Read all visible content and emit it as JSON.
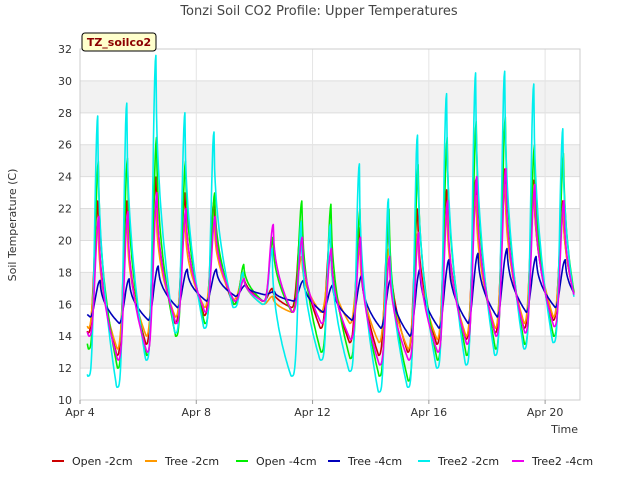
{
  "chart_data": {
    "type": "line",
    "title": "Tonzi Soil CO2 Profile: Upper Temperatures",
    "xlabel": "Time",
    "ylabel": "Soil Temperature (C)",
    "tag_label": "TZ_soilco2",
    "xlim": [
      0,
      17.2
    ],
    "ylim": [
      10,
      32
    ],
    "yticks": [
      10,
      12,
      14,
      16,
      18,
      20,
      22,
      24,
      26,
      28,
      30,
      32
    ],
    "xticks": [
      {
        "value": 0,
        "label": "Apr 4"
      },
      {
        "value": 4,
        "label": "Apr 8"
      },
      {
        "value": 8,
        "label": "Apr 12"
      },
      {
        "value": 12,
        "label": "Apr 16"
      },
      {
        "value": 16,
        "label": "Apr 20"
      }
    ],
    "grid": true,
    "legend_position": "bottom",
    "start_offset_days": 0.25,
    "end_offset_days": 17.0,
    "daily_min": [
      {
        "name": "Open -2cm",
        "values": [
          14.2,
          12.8,
          13.5,
          14.8,
          15.3,
          16.0,
          16.2,
          15.8,
          14.5,
          13.6,
          12.8,
          13.0,
          13.5,
          13.8,
          14.2,
          14.5,
          15.0
        ]
      },
      {
        "name": "Tree -2cm",
        "values": [
          14.5,
          13.2,
          14.0,
          15.2,
          15.8,
          16.3,
          16.0,
          15.5,
          15.5,
          14.8,
          13.6,
          13.2,
          13.8,
          14.0,
          14.5,
          14.8,
          15.2
        ]
      },
      {
        "name": "Open -4cm",
        "values": [
          13.2,
          12.0,
          12.8,
          14.0,
          14.8,
          16.0,
          16.2,
          15.5,
          13.0,
          12.6,
          11.5,
          11.2,
          12.5,
          12.8,
          13.2,
          13.5,
          14.0
        ]
      },
      {
        "name": "Tree -4cm",
        "values": [
          15.2,
          14.8,
          15.0,
          15.8,
          16.2,
          16.5,
          16.6,
          16.2,
          15.5,
          15.0,
          14.5,
          14.0,
          14.5,
          14.8,
          15.2,
          15.5,
          15.8
        ]
      },
      {
        "name": "Tree2 -2cm",
        "values": [
          11.5,
          10.8,
          12.5,
          14.2,
          14.5,
          15.8,
          16.0,
          11.5,
          12.5,
          11.8,
          10.5,
          10.8,
          12.0,
          12.2,
          12.8,
          13.2,
          13.6
        ]
      },
      {
        "name": "Tree2 -4cm",
        "values": [
          14.0,
          12.5,
          13.0,
          14.8,
          15.5,
          16.2,
          16.2,
          15.5,
          14.8,
          13.8,
          12.2,
          12.5,
          13.0,
          13.5,
          14.0,
          14.2,
          14.6
        ]
      }
    ],
    "daily_max": [
      {
        "name": "Open -2cm",
        "values": [
          22.5,
          22.5,
          24.0,
          23.0,
          22.5,
          18.0,
          17.0,
          21.0,
          20.5,
          20.8,
          21.0,
          22.0,
          23.2,
          23.8,
          24.5,
          23.8,
          22.5
        ]
      },
      {
        "name": "Tree -2cm",
        "values": [
          21.0,
          21.0,
          22.0,
          21.0,
          21.0,
          17.8,
          16.5,
          19.0,
          19.0,
          19.5,
          19.5,
          20.5,
          22.0,
          22.8,
          23.5,
          23.5,
          22.0
        ]
      },
      {
        "name": "Open -4cm",
        "values": [
          25.0,
          25.2,
          26.5,
          25.0,
          23.0,
          18.5,
          20.2,
          22.5,
          22.3,
          22.0,
          22.0,
          24.8,
          26.5,
          27.5,
          27.8,
          26.0,
          25.5
        ]
      },
      {
        "name": "Tree -4cm",
        "values": [
          17.5,
          17.6,
          18.4,
          18.2,
          18.2,
          17.2,
          16.8,
          17.5,
          17.2,
          17.8,
          17.6,
          18.2,
          18.8,
          19.2,
          19.5,
          19.0,
          18.8
        ]
      },
      {
        "name": "Tree2 -2cm",
        "values": [
          27.8,
          28.6,
          31.6,
          28.0,
          26.8,
          18.0,
          19.5,
          21.2,
          21.0,
          24.8,
          22.6,
          26.6,
          29.2,
          30.5,
          30.6,
          29.8,
          27.0
        ]
      },
      {
        "name": "Tree2 -4cm",
        "values": [
          21.5,
          21.8,
          23.0,
          22.0,
          21.5,
          17.6,
          21.0,
          20.2,
          19.5,
          20.2,
          19.0,
          20.5,
          22.5,
          24.0,
          24.5,
          23.5,
          22.5
        ]
      }
    ],
    "series": [
      {
        "name": "Open -2cm",
        "color": "#cc0000"
      },
      {
        "name": "Tree -2cm",
        "color": "#ff9900"
      },
      {
        "name": "Open -4cm",
        "color": "#00ee00"
      },
      {
        "name": "Tree -4cm",
        "color": "#0000bb"
      },
      {
        "name": "Tree2 -2cm",
        "color": "#00eeee"
      },
      {
        "name": "Tree2 -4cm",
        "color": "#ee00ee"
      }
    ]
  }
}
